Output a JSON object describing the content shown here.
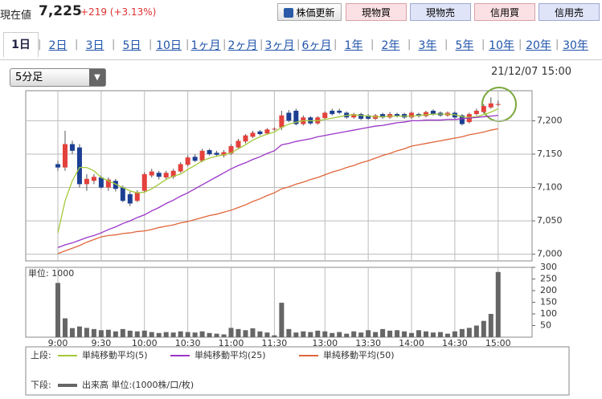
{
  "header": {
    "label": "現在値",
    "price": "7,225",
    "change": "+219",
    "change_pct": "(+3.13%)",
    "refresh_button": "株価更新",
    "buttons": [
      "現物買",
      "現物売",
      "信用買",
      "信用売"
    ]
  },
  "tabs": {
    "items": [
      "1日",
      "2日",
      "3日",
      "5日",
      "10日",
      "1ヶ月",
      "2ヶ月",
      "3ヶ月",
      "6ヶ月",
      "1年",
      "2年",
      "3年",
      "5年",
      "10年",
      "20年",
      "30年"
    ],
    "selected": 0
  },
  "interval_select": "5分足",
  "timestamp": "21/12/07 15:00",
  "legend": {
    "upper_label": "上段:",
    "lower_label": "下段:"
  },
  "chart_data": [
    {
      "type": "candlestick",
      "up_color": "#e4413c",
      "down_color": "#1c3f94",
      "grid": true,
      "categories": [
        "9:00",
        null,
        null,
        null,
        null,
        null,
        "9:30",
        null,
        null,
        null,
        null,
        null,
        "10:00",
        null,
        null,
        null,
        null,
        null,
        "10:30",
        null,
        null,
        null,
        null,
        null,
        "11:00",
        null,
        null,
        null,
        null,
        null,
        "11:30",
        null,
        null,
        null,
        null,
        null,
        null,
        "13:00",
        null,
        null,
        null,
        null,
        null,
        "13:30",
        null,
        null,
        null,
        null,
        null,
        "14:00",
        null,
        null,
        null,
        null,
        null,
        "14:30",
        null,
        null,
        null,
        null,
        null,
        "15:00"
      ],
      "open": [
        7135,
        7130,
        7165,
        7160,
        7105,
        7110,
        7115,
        7100,
        7110,
        7100,
        7090,
        7080,
        7095,
        7118,
        7122,
        7115,
        7116,
        7124,
        7134,
        7146,
        7140,
        7156,
        7152,
        7148,
        7151,
        7160,
        7169,
        7176,
        7184,
        7181,
        7187,
        7190,
        7212,
        7215,
        7195,
        7205,
        7196,
        7204,
        7215,
        7215,
        7212,
        7205,
        7210,
        7208,
        7203,
        7210,
        7205,
        7210,
        7210,
        7205,
        7210,
        7207,
        7215,
        7212,
        7208,
        7212,
        7208,
        7198,
        7210,
        7213,
        7220,
        7225
      ],
      "close": [
        7130,
        7165,
        7155,
        7105,
        7113,
        7116,
        7100,
        7112,
        7098,
        7080,
        7076,
        7093,
        7120,
        7124,
        7116,
        7122,
        7125,
        7135,
        7145,
        7140,
        7155,
        7150,
        7149,
        7153,
        7162,
        7170,
        7178,
        7182,
        7180,
        7187,
        7188,
        7208,
        7200,
        7195,
        7205,
        7196,
        7205,
        7212,
        7210,
        7212,
        7205,
        7210,
        7203,
        7203,
        7208,
        7205,
        7210,
        7207,
        7205,
        7212,
        7207,
        7213,
        7210,
        7208,
        7212,
        7205,
        7195,
        7210,
        7215,
        7222,
        7226,
        7225
      ],
      "high": [
        7140,
        7185,
        7170,
        7165,
        7120,
        7120,
        7118,
        7115,
        7113,
        7103,
        7094,
        7096,
        7123,
        7128,
        7125,
        7125,
        7128,
        7138,
        7148,
        7150,
        7158,
        7158,
        7155,
        7156,
        7165,
        7173,
        7180,
        7185,
        7186,
        7189,
        7190,
        7215,
        7216,
        7218,
        7208,
        7207,
        7207,
        7214,
        7218,
        7218,
        7214,
        7212,
        7212,
        7210,
        7210,
        7212,
        7213,
        7212,
        7212,
        7214,
        7212,
        7215,
        7217,
        7214,
        7214,
        7214,
        7210,
        7212,
        7218,
        7225,
        7235,
        7230
      ],
      "low": [
        7125,
        7125,
        7150,
        7100,
        7095,
        7105,
        7098,
        7095,
        7094,
        7078,
        7072,
        7078,
        7092,
        7115,
        7112,
        7112,
        7113,
        7122,
        7132,
        7138,
        7138,
        7148,
        7146,
        7145,
        7149,
        7158,
        7166,
        7174,
        7178,
        7179,
        7185,
        7186,
        7198,
        7193,
        7193,
        7194,
        7194,
        7202,
        7208,
        7210,
        7203,
        7203,
        7201,
        7201,
        7201,
        7203,
        7203,
        7205,
        7203,
        7203,
        7205,
        7205,
        7208,
        7206,
        7206,
        7203,
        7193,
        7196,
        7208,
        7211,
        7218,
        7222
      ],
      "series": [
        {
          "name": "単純移動平均(5)",
          "color": "#a3c93a",
          "values": [
            7032,
            7080,
            7110,
            7130,
            7130,
            7125,
            7115,
            7110,
            7105,
            7100,
            7095,
            7092,
            7093,
            7098,
            7105,
            7112,
            7117,
            7120,
            7127,
            7133,
            7140,
            7144,
            7147,
            7149,
            7152,
            7158,
            7164,
            7171,
            7176,
            7180,
            7183,
            7190,
            7195,
            7198,
            7200,
            7200,
            7200,
            7202,
            7204,
            7206,
            7208,
            7209,
            7208,
            7207,
            7206,
            7206,
            7207,
            7207,
            7207,
            7207,
            7208,
            7209,
            7210,
            7210,
            7210,
            7209,
            7206,
            7205,
            7206,
            7209,
            7213,
            7218
          ]
        },
        {
          "name": "単純移動平均(25)",
          "color": "#9a35c8",
          "values": [
            7010,
            7014,
            7017,
            7021,
            7025,
            7028,
            7032,
            7037,
            7041,
            7046,
            7050,
            7055,
            7059,
            7065,
            7070,
            7076,
            7081,
            7087,
            7092,
            7098,
            7104,
            7110,
            7116,
            7122,
            7128,
            7133,
            7137,
            7142,
            7146,
            7151,
            7155,
            7164,
            7166,
            7169,
            7171,
            7173,
            7176,
            7178,
            7180,
            7182,
            7184,
            7186,
            7188,
            7190,
            7192,
            7193,
            7195,
            7197,
            7198,
            7200,
            7200,
            7201,
            7201,
            7201,
            7202,
            7202,
            7203,
            7204,
            7205,
            7206,
            7207,
            7208
          ]
        },
        {
          "name": "単純移動平均(50)",
          "color": "#e0653a",
          "values": [
            7001,
            7005,
            7009,
            7013,
            7018,
            7022,
            7026,
            7028,
            7029,
            7031,
            7032,
            7034,
            7035,
            7037,
            7040,
            7042,
            7044,
            7047,
            7049,
            7052,
            7055,
            7058,
            7060,
            7063,
            7066,
            7070,
            7074,
            7079,
            7083,
            7088,
            7092,
            7098,
            7101,
            7105,
            7108,
            7112,
            7115,
            7119,
            7123,
            7126,
            7130,
            7133,
            7137,
            7140,
            7144,
            7148,
            7151,
            7155,
            7158,
            7162,
            7164,
            7166,
            7168,
            7170,
            7172,
            7174,
            7176,
            7179,
            7181,
            7183,
            7186,
            7188
          ]
        }
      ],
      "ylim": [
        6990,
        7245
      ],
      "yticks": [
        {
          "value": 7000,
          "label": "7,000"
        },
        {
          "value": 7050,
          "label": "7,050"
        },
        {
          "value": 7100,
          "label": "7,100"
        },
        {
          "value": 7150,
          "label": "7,150"
        },
        {
          "value": 7200,
          "label": "7,200"
        }
      ]
    },
    {
      "type": "bar",
      "unit_label": "単位: 1000",
      "series": [
        {
          "name": "出来高 単位:(1000株/口/枚)",
          "color": "#666666",
          "values": [
            233,
            81,
            39,
            46,
            40,
            35,
            30,
            32,
            25,
            35,
            28,
            25,
            28,
            22,
            18,
            22,
            20,
            25,
            22,
            20,
            25,
            18,
            15,
            12,
            40,
            35,
            30,
            38,
            25,
            20,
            8,
            148,
            35,
            20,
            25,
            22,
            28,
            25,
            18,
            22,
            15,
            25,
            20,
            30,
            22,
            35,
            28,
            30,
            25,
            18,
            30,
            25,
            20,
            22,
            15,
            25,
            35,
            40,
            50,
            70,
            100,
            280
          ]
        }
      ],
      "ylim": [
        0,
        300
      ],
      "yticks": [
        50,
        100,
        150,
        200,
        250,
        300
      ]
    }
  ]
}
